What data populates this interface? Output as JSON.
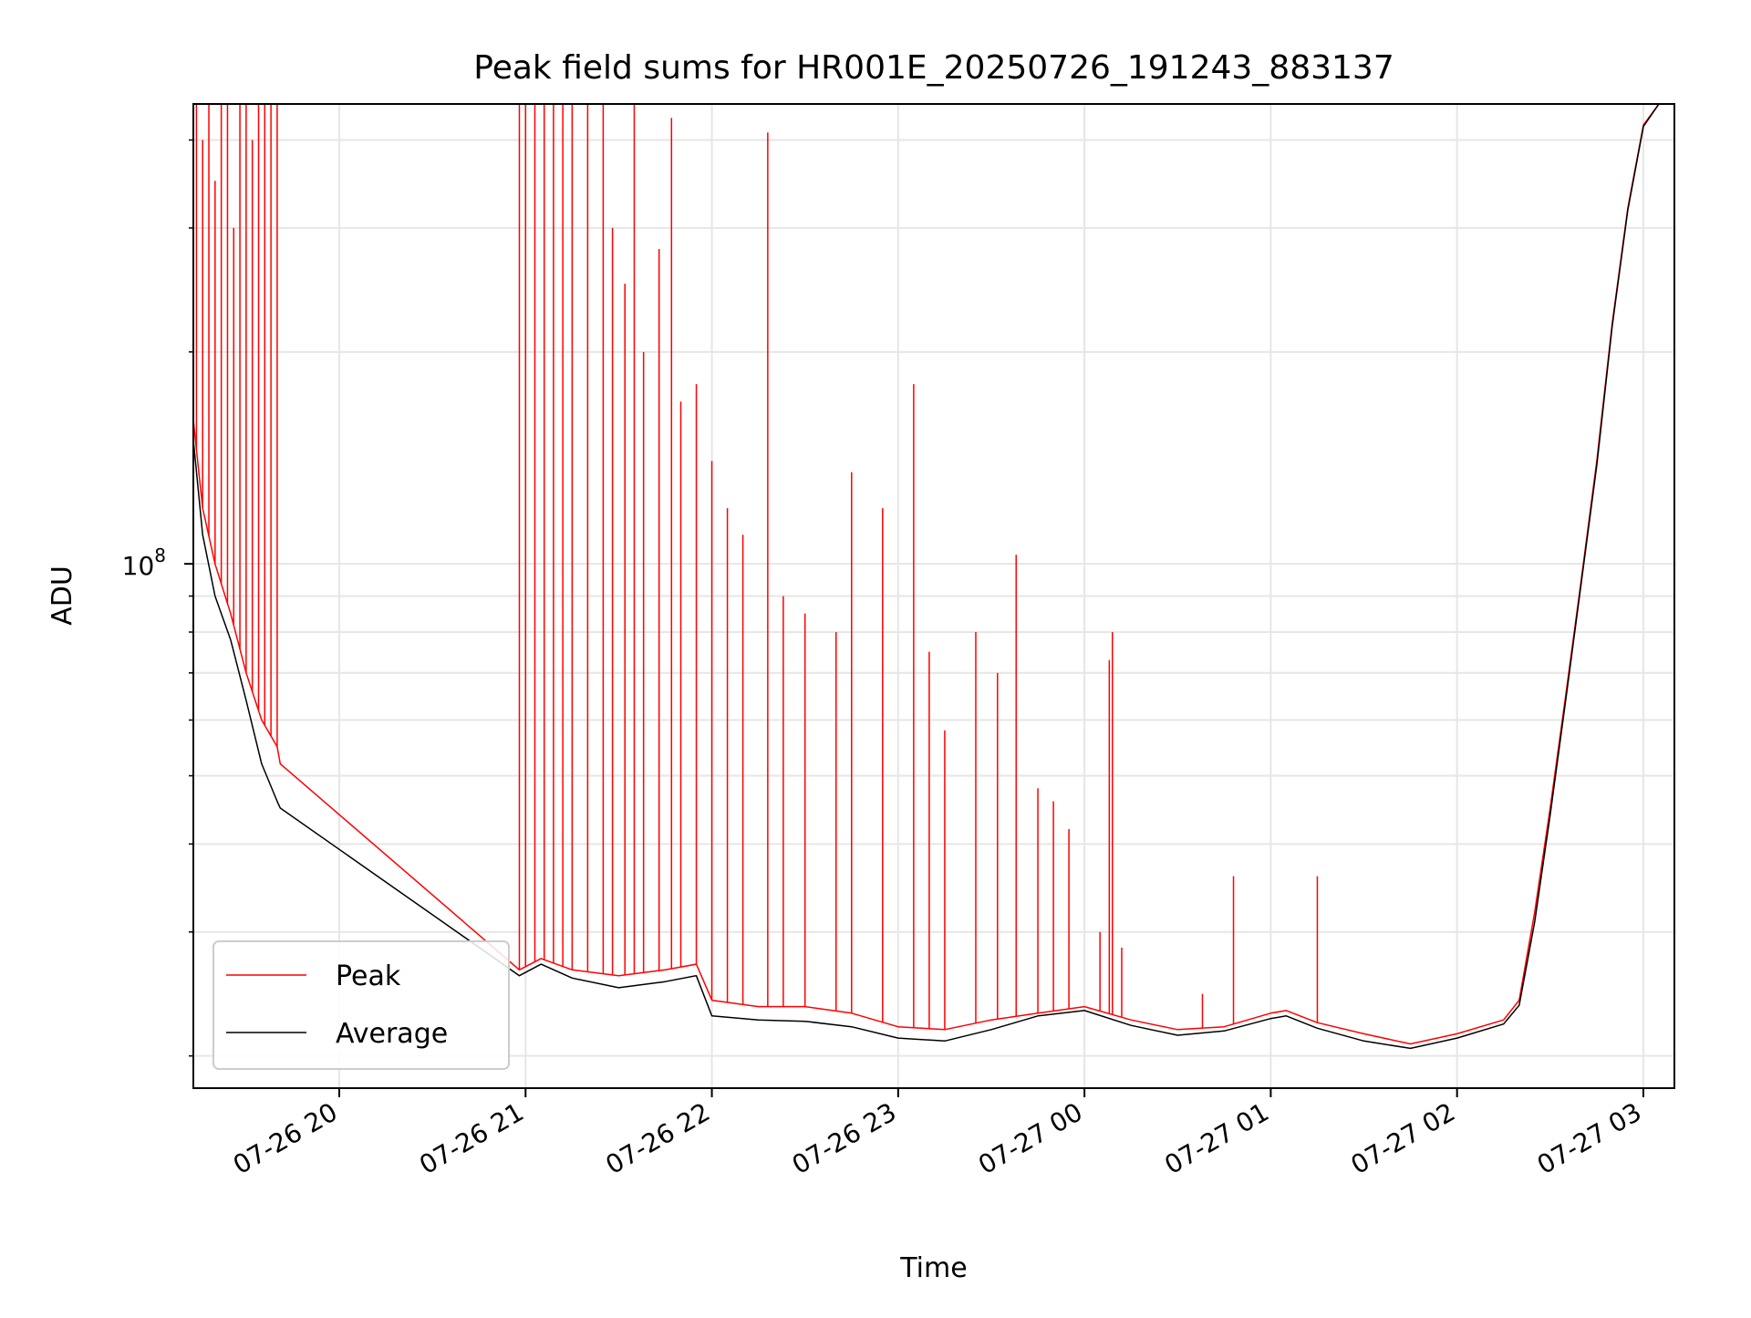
{
  "chart_data": {
    "type": "line",
    "title": "Peak field sums for HR001E_20250726_191243_883137",
    "xlabel": "Time",
    "ylabel": "ADU",
    "yscale": "log",
    "grid": true,
    "legend_position": "lower-left",
    "xlim": [
      "2025-07-26 19:13",
      "2025-07-27 03:10"
    ],
    "ylim": [
      18000000,
      450000000
    ],
    "x_ticks": [
      {
        "label": "07-26 20",
        "time": "2025-07-26 20:00"
      },
      {
        "label": "07-26 21",
        "time": "2025-07-26 21:00"
      },
      {
        "label": "07-26 22",
        "time": "2025-07-26 22:00"
      },
      {
        "label": "07-26 23",
        "time": "2025-07-26 23:00"
      },
      {
        "label": "07-27 00",
        "time": "2025-07-27 00:00"
      },
      {
        "label": "07-27 01",
        "time": "2025-07-27 01:00"
      },
      {
        "label": "07-27 02",
        "time": "2025-07-27 02:00"
      },
      {
        "label": "07-27 03",
        "time": "2025-07-27 03:00"
      }
    ],
    "y_ticks": [
      {
        "label": "10",
        "exponent": "8",
        "value": 100000000
      }
    ],
    "series": [
      {
        "name": "Peak",
        "color": "#ff0000",
        "x": [
          "2025-07-26 19:13",
          "2025-07-26 19:16",
          "2025-07-26 19:20",
          "2025-07-26 19:25",
          "2025-07-26 19:30",
          "2025-07-26 19:35",
          "2025-07-26 19:40",
          "2025-07-26 19:41",
          "2025-07-26 20:58",
          "2025-07-26 21:05",
          "2025-07-26 21:15",
          "2025-07-26 21:30",
          "2025-07-26 21:45",
          "2025-07-26 21:55",
          "2025-07-26 22:00",
          "2025-07-26 22:15",
          "2025-07-26 22:30",
          "2025-07-26 22:45",
          "2025-07-26 23:00",
          "2025-07-26 23:15",
          "2025-07-26 23:30",
          "2025-07-26 23:45",
          "2025-07-27 00:00",
          "2025-07-27 00:15",
          "2025-07-27 00:30",
          "2025-07-27 00:45",
          "2025-07-27 01:00",
          "2025-07-27 01:05",
          "2025-07-27 01:15",
          "2025-07-27 01:30",
          "2025-07-27 01:45",
          "2025-07-27 02:00",
          "2025-07-27 02:15",
          "2025-07-27 02:20",
          "2025-07-27 02:25",
          "2025-07-27 02:30",
          "2025-07-27 02:35",
          "2025-07-27 02:40",
          "2025-07-27 02:45",
          "2025-07-27 02:50",
          "2025-07-27 02:55",
          "2025-07-27 03:00",
          "2025-07-27 03:05"
        ],
        "y": [
          160000000,
          120000000,
          100000000,
          85000000,
          70000000,
          60000000,
          55000000,
          52000000,
          26500000,
          27500000,
          26500000,
          26000000,
          26500000,
          27000000,
          24000000,
          23500000,
          23500000,
          23000000,
          22000000,
          21800000,
          22500000,
          23000000,
          23500000,
          22500000,
          21800000,
          22000000,
          23000000,
          23200000,
          22300000,
          21500000,
          20800000,
          21500000,
          22500000,
          24000000,
          32000000,
          45000000,
          65000000,
          95000000,
          140000000,
          220000000,
          320000000,
          420000000,
          450000000
        ],
        "spikes": [
          {
            "x": "2025-07-26 19:14",
            "y": 450000000
          },
          {
            "x": "2025-07-26 19:16",
            "y": 400000000
          },
          {
            "x": "2025-07-26 19:18",
            "y": 450000000
          },
          {
            "x": "2025-07-26 19:20",
            "y": 350000000
          },
          {
            "x": "2025-07-26 19:22",
            "y": 450000000
          },
          {
            "x": "2025-07-26 19:24",
            "y": 450000000
          },
          {
            "x": "2025-07-26 19:26",
            "y": 300000000
          },
          {
            "x": "2025-07-26 19:28",
            "y": 450000000
          },
          {
            "x": "2025-07-26 19:30",
            "y": 450000000
          },
          {
            "x": "2025-07-26 19:32",
            "y": 400000000
          },
          {
            "x": "2025-07-26 19:34",
            "y": 450000000
          },
          {
            "x": "2025-07-26 19:36",
            "y": 450000000
          },
          {
            "x": "2025-07-26 19:38",
            "y": 450000000
          },
          {
            "x": "2025-07-26 19:40",
            "y": 450000000
          },
          {
            "x": "2025-07-26 20:58",
            "y": 450000000
          },
          {
            "x": "2025-07-26 21:00",
            "y": 450000000
          },
          {
            "x": "2025-07-26 21:03",
            "y": 450000000
          },
          {
            "x": "2025-07-26 21:06",
            "y": 450000000
          },
          {
            "x": "2025-07-26 21:09",
            "y": 450000000
          },
          {
            "x": "2025-07-26 21:12",
            "y": 450000000
          },
          {
            "x": "2025-07-26 21:15",
            "y": 450000000
          },
          {
            "x": "2025-07-26 21:20",
            "y": 450000000
          },
          {
            "x": "2025-07-26 21:25",
            "y": 450000000
          },
          {
            "x": "2025-07-26 21:28",
            "y": 300000000
          },
          {
            "x": "2025-07-26 21:32",
            "y": 250000000
          },
          {
            "x": "2025-07-26 21:35",
            "y": 450000000
          },
          {
            "x": "2025-07-26 21:38",
            "y": 200000000
          },
          {
            "x": "2025-07-26 21:43",
            "y": 280000000
          },
          {
            "x": "2025-07-26 21:47",
            "y": 430000000
          },
          {
            "x": "2025-07-26 21:50",
            "y": 170000000
          },
          {
            "x": "2025-07-26 21:55",
            "y": 180000000
          },
          {
            "x": "2025-07-26 22:00",
            "y": 140000000
          },
          {
            "x": "2025-07-26 22:05",
            "y": 120000000
          },
          {
            "x": "2025-07-26 22:10",
            "y": 110000000
          },
          {
            "x": "2025-07-26 22:18",
            "y": 410000000
          },
          {
            "x": "2025-07-26 22:23",
            "y": 90000000
          },
          {
            "x": "2025-07-26 22:30",
            "y": 85000000
          },
          {
            "x": "2025-07-26 22:40",
            "y": 80000000
          },
          {
            "x": "2025-07-26 22:45",
            "y": 135000000
          },
          {
            "x": "2025-07-26 22:55",
            "y": 120000000
          },
          {
            "x": "2025-07-26 23:05",
            "y": 180000000
          },
          {
            "x": "2025-07-26 23:10",
            "y": 75000000
          },
          {
            "x": "2025-07-26 23:15",
            "y": 58000000
          },
          {
            "x": "2025-07-26 23:25",
            "y": 80000000
          },
          {
            "x": "2025-07-26 23:32",
            "y": 70000000
          },
          {
            "x": "2025-07-26 23:38",
            "y": 103000000
          },
          {
            "x": "2025-07-26 23:45",
            "y": 48000000
          },
          {
            "x": "2025-07-26 23:50",
            "y": 46000000
          },
          {
            "x": "2025-07-26 23:55",
            "y": 42000000
          },
          {
            "x": "2025-07-27 00:05",
            "y": 30000000
          },
          {
            "x": "2025-07-27 00:08",
            "y": 73000000
          },
          {
            "x": "2025-07-27 00:09",
            "y": 80000000
          },
          {
            "x": "2025-07-27 00:12",
            "y": 28500000
          },
          {
            "x": "2025-07-27 00:38",
            "y": 24500000
          },
          {
            "x": "2025-07-27 00:48",
            "y": 36000000
          },
          {
            "x": "2025-07-27 01:15",
            "y": 36000000
          }
        ]
      },
      {
        "name": "Average",
        "color": "#000000",
        "x": [
          "2025-07-26 19:13",
          "2025-07-26 19:16",
          "2025-07-26 19:20",
          "2025-07-26 19:25",
          "2025-07-26 19:30",
          "2025-07-26 19:35",
          "2025-07-26 19:40",
          "2025-07-26 19:41",
          "2025-07-26 20:58",
          "2025-07-26 21:05",
          "2025-07-26 21:15",
          "2025-07-26 21:30",
          "2025-07-26 21:45",
          "2025-07-26 21:55",
          "2025-07-26 22:00",
          "2025-07-26 22:15",
          "2025-07-26 22:30",
          "2025-07-26 22:45",
          "2025-07-26 23:00",
          "2025-07-26 23:15",
          "2025-07-26 23:30",
          "2025-07-26 23:45",
          "2025-07-27 00:00",
          "2025-07-27 00:15",
          "2025-07-27 00:30",
          "2025-07-27 00:45",
          "2025-07-27 01:00",
          "2025-07-27 01:05",
          "2025-07-27 01:15",
          "2025-07-27 01:30",
          "2025-07-27 01:45",
          "2025-07-27 02:00",
          "2025-07-27 02:15",
          "2025-07-27 02:20",
          "2025-07-27 02:25",
          "2025-07-27 02:30",
          "2025-07-27 02:35",
          "2025-07-27 02:40",
          "2025-07-27 02:45",
          "2025-07-27 02:50",
          "2025-07-27 02:55",
          "2025-07-27 03:00",
          "2025-07-27 03:05"
        ],
        "y": [
          150000000,
          110000000,
          90000000,
          78000000,
          64000000,
          52000000,
          46000000,
          45000000,
          26000000,
          27000000,
          25800000,
          25000000,
          25500000,
          26000000,
          22800000,
          22500000,
          22400000,
          22000000,
          21200000,
          21000000,
          21800000,
          22800000,
          23200000,
          22100000,
          21400000,
          21700000,
          22600000,
          22800000,
          21900000,
          21000000,
          20500000,
          21200000,
          22200000,
          23600000,
          31000000,
          44000000,
          64000000,
          94000000,
          138000000,
          218000000,
          318000000,
          418000000,
          450000000
        ]
      }
    ]
  }
}
